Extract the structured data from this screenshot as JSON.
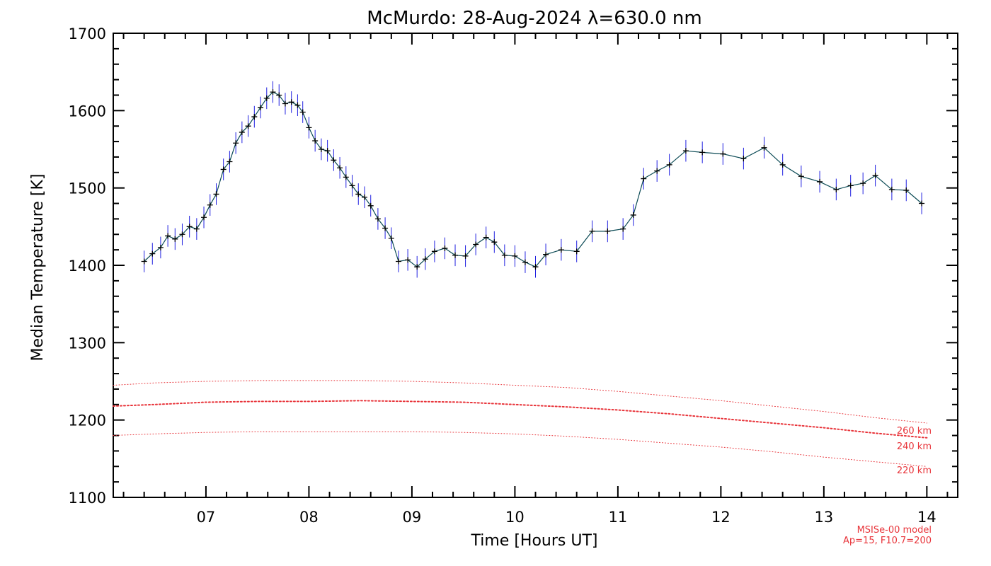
{
  "chart_data": {
    "type": "line",
    "title": "McMurdo: 28-Aug-2024 λ=630.0 nm",
    "xlabel": "Time [Hours UT]",
    "ylabel": "Median Temperature [K]",
    "xlim": [
      6.1,
      14.3
    ],
    "ylim": [
      1100,
      1700
    ],
    "x_ticks": [
      7,
      8,
      9,
      10,
      11,
      12,
      13,
      14
    ],
    "x_tick_labels": [
      "07",
      "08",
      "09",
      "10",
      "11",
      "12",
      "13",
      "14"
    ],
    "y_ticks": [
      1100,
      1200,
      1300,
      1400,
      1500,
      1600,
      1700
    ],
    "y_tick_labels": [
      "1100",
      "1200",
      "1300",
      "1400",
      "1500",
      "1600",
      "1700"
    ],
    "grid": false,
    "series": [
      {
        "style": "line-with-errorbars",
        "color": "#000000",
        "line_color": "#0b4a55",
        "error_color": "#2020e0",
        "error": 14,
        "x": [
          6.4,
          6.48,
          6.56,
          6.63,
          6.7,
          6.77,
          6.84,
          6.91,
          6.98,
          7.04,
          7.1,
          7.17,
          7.23,
          7.29,
          7.35,
          7.41,
          7.47,
          7.53,
          7.59,
          7.65,
          7.71,
          7.77,
          7.83,
          7.89,
          7.94,
          8.0,
          8.06,
          8.12,
          8.18,
          8.24,
          8.3,
          8.36,
          8.42,
          8.48,
          8.54,
          8.6,
          8.67,
          8.74,
          8.8,
          8.87,
          8.96,
          9.05,
          9.13,
          9.22,
          9.32,
          9.42,
          9.52,
          9.62,
          9.72,
          9.8,
          9.9,
          10.0,
          10.1,
          10.2,
          10.3,
          10.45,
          10.6,
          10.75,
          10.9,
          11.05,
          11.15,
          11.25,
          11.38,
          11.5,
          11.66,
          11.82,
          12.02,
          12.22,
          12.42,
          12.6,
          12.78,
          12.96,
          13.12,
          13.26,
          13.38,
          13.5,
          13.66,
          13.8,
          13.95
        ],
        "y": [
          1405,
          1415,
          1423,
          1438,
          1434,
          1440,
          1450,
          1447,
          1462,
          1478,
          1492,
          1524,
          1534,
          1558,
          1572,
          1580,
          1592,
          1604,
          1616,
          1624,
          1620,
          1609,
          1611,
          1607,
          1598,
          1578,
          1561,
          1550,
          1548,
          1536,
          1526,
          1514,
          1503,
          1492,
          1488,
          1477,
          1460,
          1448,
          1435,
          1405,
          1407,
          1398,
          1408,
          1418,
          1422,
          1413,
          1412,
          1427,
          1436,
          1430,
          1413,
          1412,
          1404,
          1398,
          1414,
          1420,
          1418,
          1444,
          1444,
          1447,
          1465,
          1512,
          1522,
          1530,
          1548,
          1546,
          1544,
          1538,
          1552,
          1530,
          1515,
          1508,
          1498,
          1503,
          1506,
          1516,
          1498,
          1497,
          1480
        ]
      }
    ],
    "model_series": [
      {
        "name": "260 km",
        "color": "#e8343a",
        "style": "dotted-thin",
        "x": [
          6.1,
          6.5,
          7.0,
          7.5,
          8.0,
          8.5,
          9.0,
          9.5,
          10.0,
          10.5,
          11.0,
          11.5,
          12.0,
          12.5,
          13.0,
          13.5,
          14.0
        ],
        "y": [
          1245,
          1248,
          1250,
          1251,
          1251,
          1251,
          1250,
          1248,
          1245,
          1242,
          1237,
          1231,
          1225,
          1218,
          1211,
          1203,
          1196
        ]
      },
      {
        "name": "240 km",
        "color": "#e8343a",
        "style": "dotted-thick",
        "x": [
          6.1,
          6.5,
          7.0,
          7.5,
          8.0,
          8.5,
          9.0,
          9.5,
          10.0,
          10.5,
          11.0,
          11.5,
          12.0,
          12.5,
          13.0,
          13.5,
          14.0
        ],
        "y": [
          1218,
          1220,
          1223,
          1224,
          1224,
          1225,
          1224,
          1223,
          1220,
          1217,
          1213,
          1208,
          1202,
          1196,
          1190,
          1183,
          1177
        ]
      },
      {
        "name": "220 km",
        "color": "#e8343a",
        "style": "dotted-thin",
        "x": [
          6.1,
          6.5,
          7.0,
          7.5,
          8.0,
          8.5,
          9.0,
          9.5,
          10.0,
          10.5,
          11.0,
          11.5,
          12.0,
          12.5,
          13.0,
          13.5,
          14.0
        ],
        "y": [
          1180,
          1182,
          1184,
          1185,
          1185,
          1185,
          1185,
          1184,
          1182,
          1179,
          1175,
          1170,
          1165,
          1159,
          1152,
          1146,
          1140
        ]
      }
    ],
    "model_note_line1": "MSISe-00 model",
    "model_note_line2": "Ap=15, F10.7=200"
  }
}
